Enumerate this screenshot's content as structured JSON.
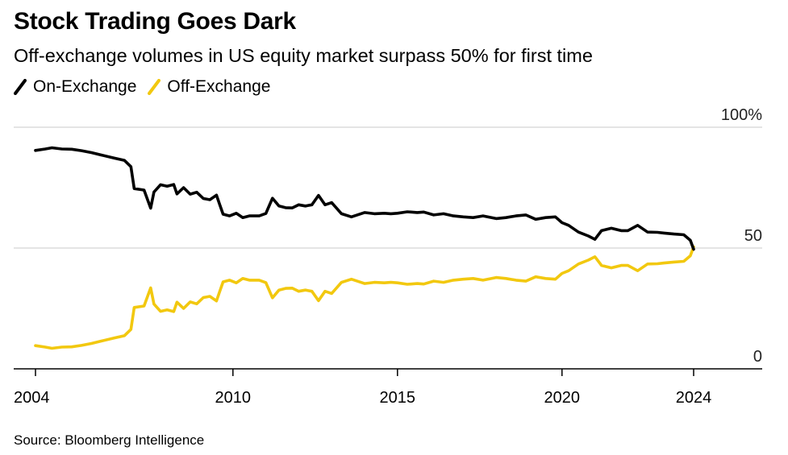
{
  "title": "Stock Trading Goes Dark",
  "subtitle": "Off-exchange volumes in US equity market surpass 50% for first time",
  "source": "Source: Bloomberg Intelligence",
  "colors": {
    "on_exchange": "#000000",
    "off_exchange": "#f2c80f",
    "grid": "#d4d4d4",
    "axis": "#000000"
  },
  "chart_data": {
    "type": "line",
    "title": "Stock Trading Goes Dark",
    "subtitle": "Off-exchange volumes in US equity market surpass 50% for first time",
    "xlabel": "",
    "ylabel": "",
    "xlim": [
      2004,
      2026.3
    ],
    "ylim": [
      0,
      100
    ],
    "x_ticks": [
      "2004",
      "2010",
      "2015",
      "2020",
      "2024"
    ],
    "y_ticks": [
      "0",
      "50",
      "100%"
    ],
    "y_axis_position": "right",
    "grid": "horizontal",
    "legend_position": "top-left",
    "series": [
      {
        "name": "On-Exchange",
        "color": "#000000",
        "points": [
          [
            2004.0,
            90.4
          ],
          [
            2004.3,
            91.0
          ],
          [
            2004.5,
            91.5
          ],
          [
            2004.8,
            91.0
          ],
          [
            2005.1,
            90.9
          ],
          [
            2005.4,
            90.3
          ],
          [
            2005.7,
            89.5
          ],
          [
            2006.0,
            88.5
          ],
          [
            2006.4,
            87.2
          ],
          [
            2006.7,
            86.3
          ],
          [
            2006.9,
            83.7
          ],
          [
            2007.0,
            74.6
          ],
          [
            2007.3,
            74.0
          ],
          [
            2007.5,
            66.5
          ],
          [
            2007.6,
            73.2
          ],
          [
            2007.8,
            76.2
          ],
          [
            2008.0,
            75.6
          ],
          [
            2008.2,
            76.3
          ],
          [
            2008.3,
            72.4
          ],
          [
            2008.5,
            75.0
          ],
          [
            2008.7,
            72.3
          ],
          [
            2008.9,
            73.1
          ],
          [
            2009.1,
            70.5
          ],
          [
            2009.3,
            70.0
          ],
          [
            2009.5,
            71.9
          ],
          [
            2009.6,
            67.9
          ],
          [
            2009.7,
            64.0
          ],
          [
            2009.9,
            63.3
          ],
          [
            2010.1,
            64.4
          ],
          [
            2010.3,
            62.6
          ],
          [
            2010.5,
            63.3
          ],
          [
            2010.8,
            63.3
          ],
          [
            2011.0,
            64.3
          ],
          [
            2011.2,
            70.6
          ],
          [
            2011.4,
            67.4
          ],
          [
            2011.6,
            66.7
          ],
          [
            2011.8,
            66.6
          ],
          [
            2012.0,
            67.9
          ],
          [
            2012.2,
            67.4
          ],
          [
            2012.4,
            67.9
          ],
          [
            2012.6,
            71.8
          ],
          [
            2012.8,
            67.9
          ],
          [
            2013.0,
            68.8
          ],
          [
            2013.3,
            64.2
          ],
          [
            2013.6,
            62.9
          ],
          [
            2014.0,
            64.7
          ],
          [
            2014.3,
            64.2
          ],
          [
            2014.6,
            64.4
          ],
          [
            2014.8,
            64.2
          ],
          [
            2015.0,
            64.4
          ],
          [
            2015.3,
            65.0
          ],
          [
            2015.6,
            64.7
          ],
          [
            2015.8,
            64.9
          ],
          [
            2016.1,
            63.7
          ],
          [
            2016.4,
            64.2
          ],
          [
            2016.7,
            63.3
          ],
          [
            2017.0,
            62.9
          ],
          [
            2017.3,
            62.6
          ],
          [
            2017.6,
            63.3
          ],
          [
            2018.0,
            62.2
          ],
          [
            2018.3,
            62.6
          ],
          [
            2018.6,
            63.3
          ],
          [
            2018.9,
            63.7
          ],
          [
            2019.2,
            61.9
          ],
          [
            2019.5,
            62.6
          ],
          [
            2019.8,
            62.9
          ],
          [
            2020.0,
            60.5
          ],
          [
            2020.2,
            59.4
          ],
          [
            2020.5,
            56.6
          ],
          [
            2020.8,
            55.0
          ],
          [
            2021.0,
            53.6
          ],
          [
            2021.2,
            57.2
          ],
          [
            2021.5,
            58.2
          ],
          [
            2021.8,
            57.2
          ],
          [
            2022.0,
            57.2
          ],
          [
            2022.3,
            59.4
          ],
          [
            2022.6,
            56.6
          ],
          [
            2022.9,
            56.5
          ],
          [
            2023.1,
            56.2
          ],
          [
            2023.4,
            55.8
          ],
          [
            2023.7,
            55.5
          ],
          [
            2023.9,
            53.2
          ],
          [
            2024.0,
            49.5
          ]
        ]
      },
      {
        "name": "Off-Exchange",
        "color": "#f2c80f",
        "points": [
          [
            2004.0,
            9.6
          ],
          [
            2004.3,
            9.0
          ],
          [
            2004.5,
            8.5
          ],
          [
            2004.8,
            9.0
          ],
          [
            2005.1,
            9.1
          ],
          [
            2005.4,
            9.7
          ],
          [
            2005.7,
            10.5
          ],
          [
            2006.0,
            11.5
          ],
          [
            2006.4,
            12.8
          ],
          [
            2006.7,
            13.7
          ],
          [
            2006.9,
            16.3
          ],
          [
            2007.0,
            25.4
          ],
          [
            2007.3,
            26.0
          ],
          [
            2007.5,
            33.5
          ],
          [
            2007.6,
            26.8
          ],
          [
            2007.8,
            23.8
          ],
          [
            2008.0,
            24.4
          ],
          [
            2008.2,
            23.7
          ],
          [
            2008.3,
            27.6
          ],
          [
            2008.5,
            25.0
          ],
          [
            2008.7,
            27.7
          ],
          [
            2008.9,
            26.9
          ],
          [
            2009.1,
            29.5
          ],
          [
            2009.3,
            30.0
          ],
          [
            2009.5,
            28.1
          ],
          [
            2009.6,
            32.1
          ],
          [
            2009.7,
            36.0
          ],
          [
            2009.9,
            36.7
          ],
          [
            2010.1,
            35.6
          ],
          [
            2010.3,
            37.4
          ],
          [
            2010.5,
            36.7
          ],
          [
            2010.8,
            36.7
          ],
          [
            2011.0,
            35.7
          ],
          [
            2011.2,
            29.4
          ],
          [
            2011.4,
            32.6
          ],
          [
            2011.6,
            33.3
          ],
          [
            2011.8,
            33.4
          ],
          [
            2012.0,
            32.1
          ],
          [
            2012.2,
            32.6
          ],
          [
            2012.4,
            32.1
          ],
          [
            2012.6,
            28.2
          ],
          [
            2012.8,
            32.1
          ],
          [
            2013.0,
            31.2
          ],
          [
            2013.3,
            35.8
          ],
          [
            2013.6,
            37.1
          ],
          [
            2014.0,
            35.3
          ],
          [
            2014.3,
            35.8
          ],
          [
            2014.6,
            35.6
          ],
          [
            2014.8,
            35.8
          ],
          [
            2015.0,
            35.6
          ],
          [
            2015.3,
            35.0
          ],
          [
            2015.6,
            35.3
          ],
          [
            2015.8,
            35.1
          ],
          [
            2016.1,
            36.3
          ],
          [
            2016.4,
            35.8
          ],
          [
            2016.7,
            36.7
          ],
          [
            2017.0,
            37.1
          ],
          [
            2017.3,
            37.4
          ],
          [
            2017.6,
            36.7
          ],
          [
            2018.0,
            37.8
          ],
          [
            2018.3,
            37.4
          ],
          [
            2018.6,
            36.7
          ],
          [
            2018.9,
            36.3
          ],
          [
            2019.2,
            38.1
          ],
          [
            2019.5,
            37.4
          ],
          [
            2019.8,
            37.1
          ],
          [
            2020.0,
            39.5
          ],
          [
            2020.2,
            40.6
          ],
          [
            2020.5,
            43.4
          ],
          [
            2020.8,
            45.0
          ],
          [
            2021.0,
            46.4
          ],
          [
            2021.2,
            42.8
          ],
          [
            2021.5,
            41.8
          ],
          [
            2021.8,
            42.8
          ],
          [
            2022.0,
            42.8
          ],
          [
            2022.3,
            40.6
          ],
          [
            2022.6,
            43.4
          ],
          [
            2022.9,
            43.5
          ],
          [
            2023.1,
            43.8
          ],
          [
            2023.4,
            44.2
          ],
          [
            2023.7,
            44.5
          ],
          [
            2023.9,
            46.8
          ],
          [
            2024.0,
            50.5
          ]
        ]
      }
    ]
  }
}
